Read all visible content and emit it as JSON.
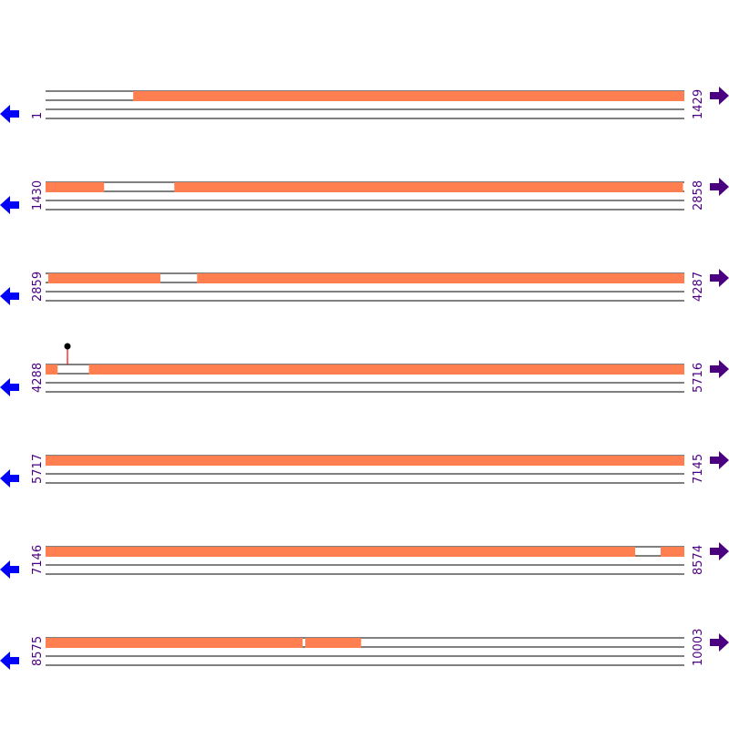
{
  "colors": {
    "feature": "#ff7f50",
    "label": "#4b0082",
    "left_arrow": "#0000ff",
    "right_arrow": "#4b0082",
    "marker_stem": "#ff0000",
    "marker_head": "#000000"
  },
  "rows": [
    {
      "start": "1",
      "end": "1429",
      "segments": [
        [
          1,
          196,
          "white"
        ],
        [
          197,
          1429,
          "orange"
        ]
      ]
    },
    {
      "start": "1430",
      "end": "2858",
      "segments": [
        [
          1430,
          1560,
          "orange"
        ],
        [
          1561,
          1717,
          "white"
        ],
        [
          1718,
          2855,
          "orange"
        ]
      ]
    },
    {
      "start": "2859",
      "end": "4287",
      "segments": [
        [
          2859,
          2864,
          "white"
        ],
        [
          2865,
          3115,
          "orange"
        ],
        [
          3116,
          3197,
          "white"
        ],
        [
          3198,
          4287,
          "orange"
        ]
      ]
    },
    {
      "start": "4288",
      "end": "5716",
      "segments": [
        [
          4288,
          4314,
          "orange"
        ],
        [
          4315,
          4384,
          "white"
        ],
        [
          4385,
          5716,
          "orange"
        ]
      ],
      "markers": [
        4337
      ]
    },
    {
      "start": "5717",
      "end": "7145",
      "segments": [
        [
          5717,
          7145,
          "orange"
        ]
      ]
    },
    {
      "start": "7146",
      "end": "8574",
      "segments": [
        [
          7146,
          8464,
          "orange"
        ],
        [
          8465,
          8521,
          "white"
        ],
        [
          8522,
          8574,
          "orange"
        ]
      ]
    },
    {
      "start": "8575",
      "end": "10003",
      "segments": [
        [
          8575,
          9149,
          "orange"
        ],
        [
          9150,
          9155,
          "white"
        ],
        [
          9156,
          9280,
          "orange"
        ],
        [
          9281,
          10003,
          "white"
        ]
      ]
    }
  ]
}
